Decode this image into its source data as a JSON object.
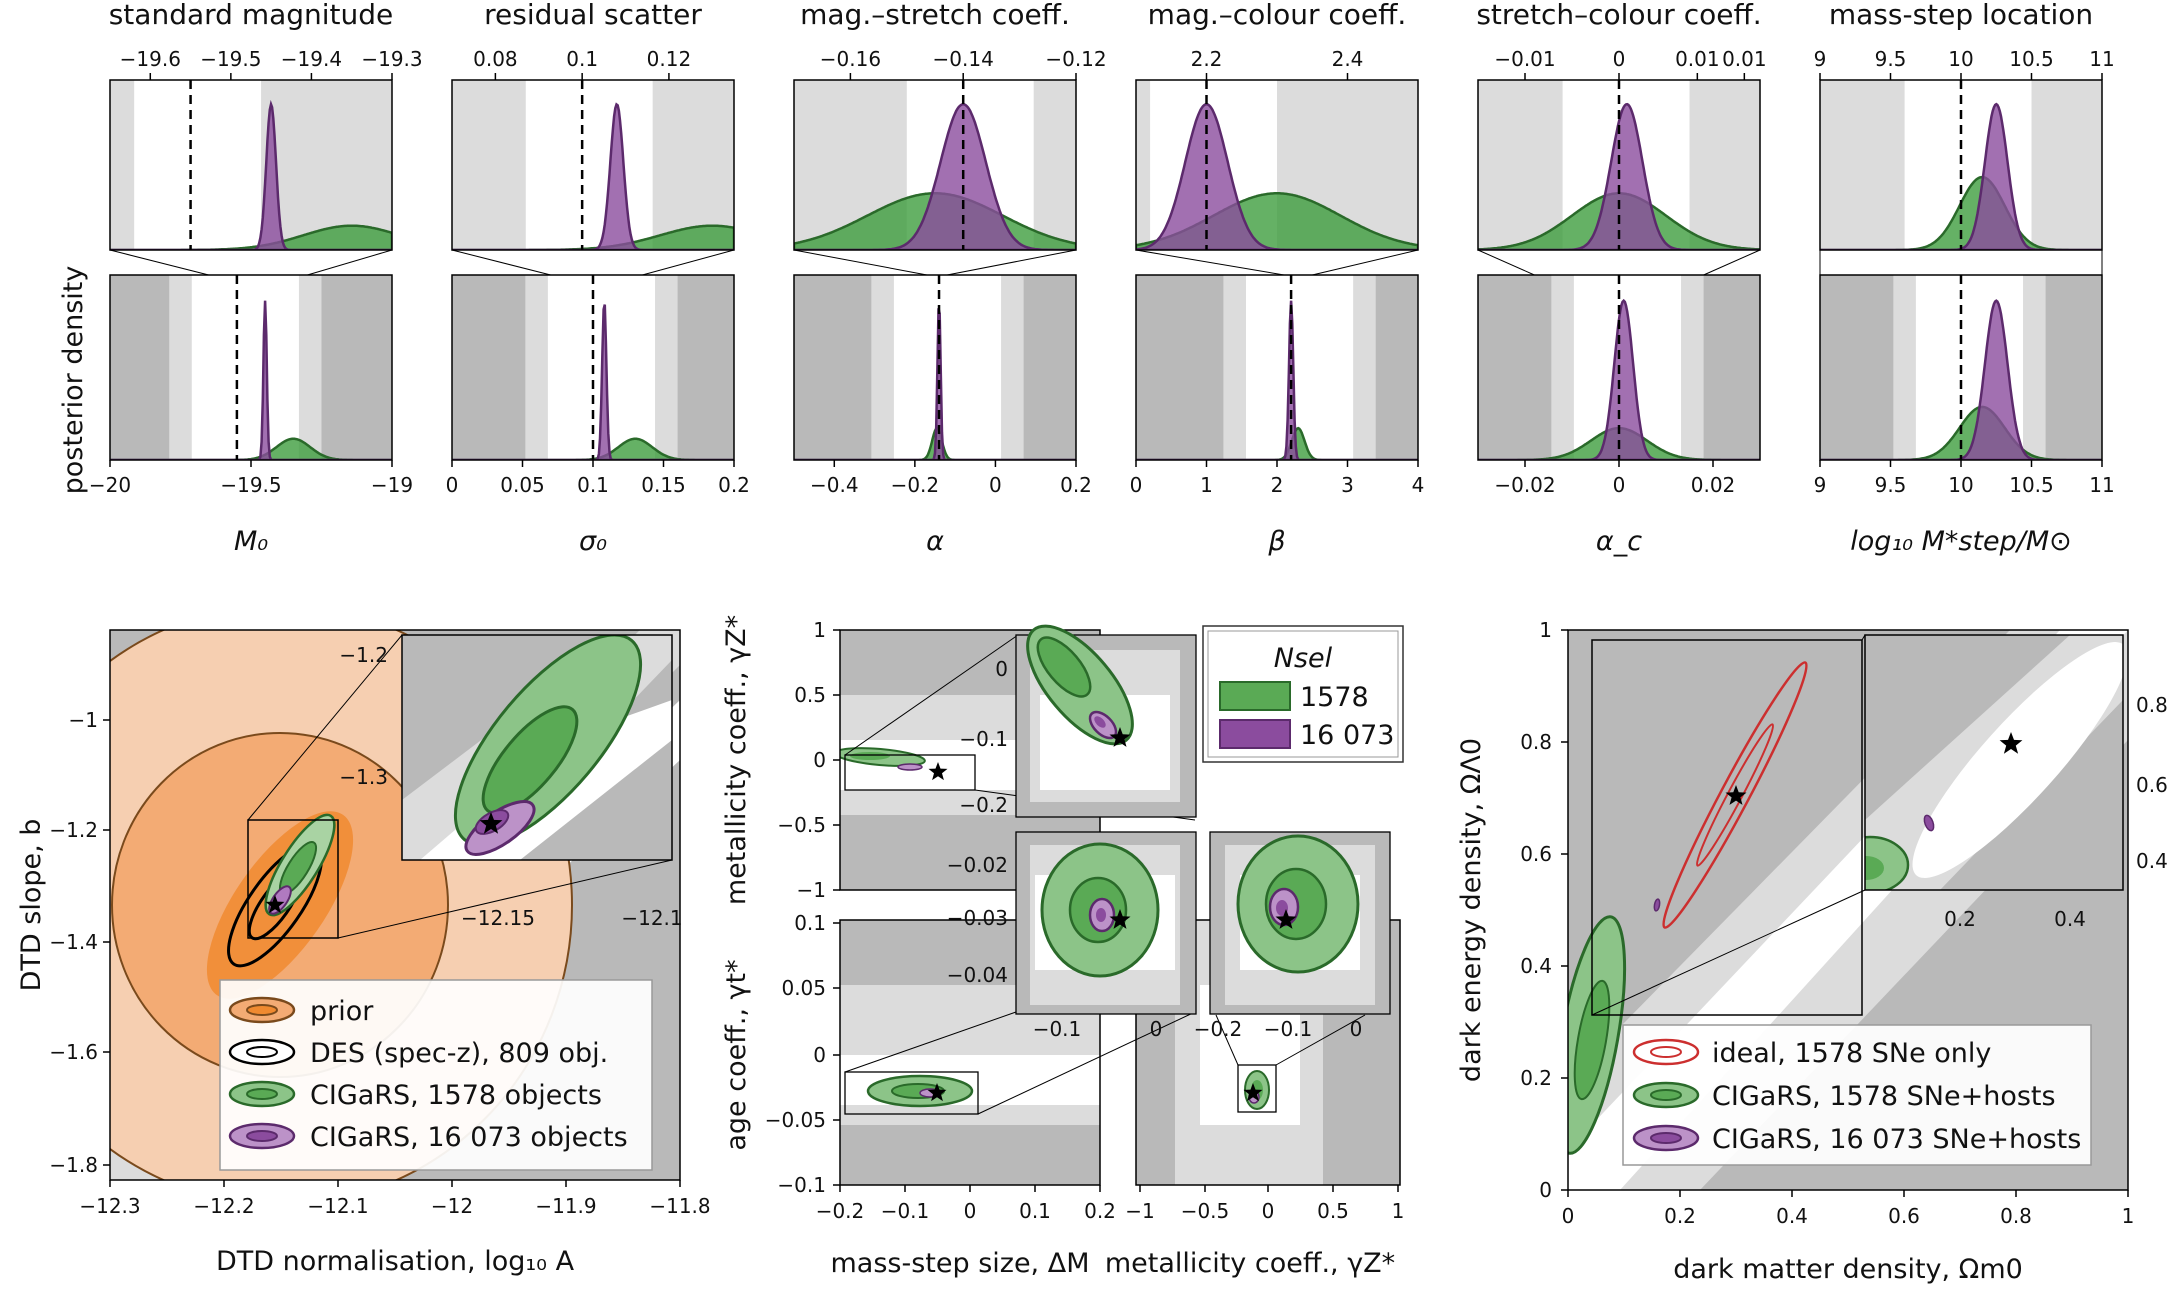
{
  "colors": {
    "green": "#3f9e3f",
    "green_edge": "#2a6a2a",
    "purple": "#8b4c9e",
    "purple_edge": "#5c2a6c",
    "orange": "#f08a30",
    "orange_edge": "#7a4a1c",
    "grey_dark": "#b9b9b9",
    "grey_light": "#dcdcdc",
    "red": "#cc2f2f"
  },
  "figure": {
    "top_panels": [
      {
        "title": "standard magnitude",
        "xlabel": "M₀",
        "top_ticks": [
          "−19.6",
          "−19.5",
          "−19.4",
          "−19.3"
        ],
        "bottom_ticks": [
          "−20",
          "−19.5",
          "−19"
        ],
        "truth": -19.55
      },
      {
        "title": "residual scatter",
        "xlabel": "σ₀",
        "top_ticks": [
          "0.08",
          "0.1",
          "0.12"
        ],
        "bottom_ticks": [
          "0",
          "0.05",
          "0.1",
          "0.15",
          "0.2"
        ],
        "truth": 0.1
      },
      {
        "title": "mag.–stretch coeff.",
        "xlabel": "α",
        "top_ticks": [
          "−0.16",
          "−0.14",
          "−0.12"
        ],
        "bottom_ticks": [
          "−0.4",
          "−0.2",
          "0",
          "0.2"
        ],
        "truth": -0.14
      },
      {
        "title": "mag.–colour coeff.",
        "xlabel": "β",
        "top_ticks": [
          "2.2",
          "2.4"
        ],
        "bottom_ticks": [
          "0",
          "1",
          "2",
          "3",
          "4"
        ],
        "truth": 2.2
      },
      {
        "title": "stretch–colour coeff.",
        "xlabel": "α_c",
        "top_ticks": [
          "−0.01",
          "0",
          "0.01",
          "0.01"
        ],
        "bottom_ticks": [
          "−0.02",
          "0",
          "0.02"
        ],
        "truth": 0
      },
      {
        "title": "mass-step location",
        "xlabel": "log₁₀ M*step/M⊙",
        "top_ticks": [
          "9",
          "9.5",
          "10",
          "10.5",
          "11"
        ],
        "bottom_ticks": [
          "9",
          "9.5",
          "10",
          "10.5",
          "11"
        ],
        "truth": 10
      }
    ],
    "ylabel_top": "posterior density",
    "dtd": {
      "xlabel": "DTD normalisation, log₁₀ A",
      "ylabel": "DTD slope, b",
      "xticks": [
        "−12.3",
        "−12.2",
        "−12.1",
        "−12",
        "−11.9",
        "−11.8"
      ],
      "yticks": [
        "−1",
        "−1.2",
        "−1.4",
        "−1.6",
        "−1.8"
      ],
      "inset_xticks": [
        "−12.15",
        "−12.1"
      ],
      "inset_yticks": [
        "−1.2",
        "−1.3"
      ],
      "legend": [
        {
          "key": "prior",
          "label": "prior"
        },
        {
          "key": "des",
          "label": "DES (spec-z), 809 obj."
        },
        {
          "key": "g",
          "label": "CIGaRS, 1578 objects"
        },
        {
          "key": "p",
          "label": "CIGaRS, 16 073 objects"
        }
      ]
    },
    "host": {
      "ylabel_upper": "metallicity coeff., γZ*",
      "ylabel_lower": "age coeff., γt*",
      "xlabel_left": "mass-step size, ΔM",
      "xlabel_right": "metallicity coeff., γZ*",
      "upper_yticks": [
        "1",
        "0.5",
        "0",
        "−0.5",
        "−1"
      ],
      "lower_yticks": [
        "0.1",
        "0.05",
        "0",
        "−0.05",
        "−0.1"
      ],
      "left_xticks": [
        "−0.2",
        "−0.1",
        "0",
        "0.1",
        "0.2"
      ],
      "right_xticks": [
        "−1",
        "−0.5",
        "0",
        "0.5",
        "1"
      ],
      "inset_a_xticks": [],
      "inset_a_yticks": [
        "0",
        "−0.1",
        "−0.2"
      ],
      "inset_b_yticks": [
        "−0.02",
        "−0.03",
        "−0.04"
      ],
      "inset_b_xticks": [
        "−0.1",
        "0"
      ],
      "inset_c_xticks": [
        "−0.2",
        "−0.1",
        "0"
      ],
      "legend_title": "Nsel",
      "legend": [
        {
          "key": "g",
          "label": "1578"
        },
        {
          "key": "p",
          "label": "16 073"
        }
      ]
    },
    "cosmo": {
      "xlabel": "dark matter density, Ωm0",
      "ylabel": "dark energy density, ΩΛ0",
      "xticks": [
        "0",
        "0.2",
        "0.4",
        "0.6",
        "0.8",
        "1"
      ],
      "yticks": [
        "1",
        "0.8",
        "0.6",
        "0.4",
        "0.2",
        "0"
      ],
      "inset_xticks": [
        "0.2",
        "0.4"
      ],
      "inset_yticks": [
        "0.8",
        "0.6",
        "0.4"
      ],
      "legend": [
        {
          "key": "red",
          "label": "ideal, 1578 SNe only"
        },
        {
          "key": "g",
          "label": "CIGaRS, 1578 SNe+hosts"
        },
        {
          "key": "p",
          "label": "CIGaRS, 16 073 SNe+hosts"
        }
      ]
    }
  },
  "chart_data": [
    {
      "type": "area",
      "title": "standard magnitude",
      "xlabel": "M₀",
      "ylabel": "posterior density",
      "xlim": [
        -20,
        -19
      ],
      "truth": -19.55,
      "series": [
        {
          "name": "1578",
          "peak": -19.35,
          "width": 0.06
        },
        {
          "name": "16 073",
          "peak": -19.45,
          "width": 0.006
        }
      ]
    },
    {
      "type": "area",
      "title": "residual scatter",
      "xlabel": "σ₀",
      "ylabel": "posterior density",
      "xlim": [
        0,
        0.2
      ],
      "truth": 0.1,
      "series": [
        {
          "name": "1578",
          "peak": 0.13,
          "width": 0.012
        },
        {
          "name": "16 073",
          "peak": 0.108,
          "width": 0.0015
        }
      ]
    },
    {
      "type": "area",
      "title": "mag.–stretch coeff.",
      "xlabel": "α",
      "ylabel": "posterior density",
      "xlim": [
        -0.5,
        0.2
      ],
      "truth": -0.14,
      "series": [
        {
          "name": "1578",
          "peak": -0.145,
          "width": 0.012
        },
        {
          "name": "16 073",
          "peak": -0.14,
          "width": 0.004
        }
      ]
    },
    {
      "type": "area",
      "title": "mag.–colour coeff.",
      "xlabel": "β",
      "ylabel": "posterior density",
      "xlim": [
        0,
        4
      ],
      "truth": 2.2,
      "series": [
        {
          "name": "1578",
          "peak": 2.3,
          "width": 0.09
        },
        {
          "name": "16 073",
          "peak": 2.2,
          "width": 0.03
        }
      ]
    },
    {
      "type": "area",
      "title": "stretch–colour coeff.",
      "xlabel": "α_c",
      "ylabel": "posterior density",
      "xlim": [
        -0.03,
        0.03
      ],
      "truth": 0,
      "series": [
        {
          "name": "1578",
          "peak": 0.0,
          "width": 0.006
        },
        {
          "name": "16 073",
          "peak": 0.001,
          "width": 0.002
        }
      ]
    },
    {
      "type": "area",
      "title": "mass-step location",
      "xlabel": "log₁₀ M*step/M⊙",
      "ylabel": "posterior density",
      "xlim": [
        9,
        11
      ],
      "truth": 10,
      "series": [
        {
          "name": "1578",
          "peak": 10.15,
          "width": 0.16
        },
        {
          "name": "16 073",
          "peak": 10.25,
          "width": 0.08
        }
      ]
    },
    {
      "type": "scatter",
      "title": "",
      "xlabel": "DTD normalisation, log₁₀ A",
      "ylabel": "DTD slope, b",
      "xlim": [
        -12.3,
        -11.8
      ],
      "ylim": [
        -1.85,
        -0.85
      ],
      "truth": [
        -12.155,
        -1.34
      ],
      "series": [
        {
          "name": "prior",
          "center": [
            -12.1,
            -1.34
          ]
        },
        {
          "name": "DES (spec-z), 809 obj.",
          "center": [
            -12.14,
            -1.35
          ]
        },
        {
          "name": "CIGaRS, 1578 objects",
          "center": [
            -12.14,
            -1.28
          ]
        },
        {
          "name": "CIGaRS, 16 073 objects",
          "center": [
            -12.155,
            -1.33
          ]
        }
      ]
    },
    {
      "type": "scatter",
      "title": "",
      "xlabel": "mass-step size, ΔM",
      "ylabel": "metallicity coeff., γZ*",
      "xlim": [
        -0.2,
        0.2
      ],
      "ylim": [
        -1,
        1
      ],
      "truth": [
        -0.05,
        -0.1
      ]
    },
    {
      "type": "scatter",
      "title": "",
      "xlabel": "mass-step size, ΔM",
      "ylabel": "age coeff., γt*",
      "xlim": [
        -0.2,
        0.2
      ],
      "ylim": [
        -0.1,
        0.1
      ],
      "truth": [
        -0.05,
        -0.03
      ]
    },
    {
      "type": "scatter",
      "title": "",
      "xlabel": "metallicity coeff., γZ*",
      "ylabel": "age coeff., γt*",
      "xlim": [
        -1,
        1
      ],
      "ylim": [
        -0.1,
        0.1
      ],
      "truth": [
        -0.1,
        -0.03
      ]
    },
    {
      "type": "scatter",
      "title": "",
      "xlabel": "dark matter density, Ωm0",
      "ylabel": "dark energy density, ΩΛ0",
      "xlim": [
        0,
        1
      ],
      "ylim": [
        0,
        1
      ],
      "truth": [
        0.3,
        0.7
      ],
      "series": [
        {
          "name": "ideal, 1578 SNe only",
          "center": [
            0.3,
            0.7
          ]
        },
        {
          "name": "CIGaRS, 1578 SNe+hosts",
          "center": [
            0.04,
            0.27
          ]
        },
        {
          "name": "CIGaRS, 16 073 SNe+hosts",
          "center": [
            0.16,
            0.5
          ]
        }
      ]
    }
  ]
}
